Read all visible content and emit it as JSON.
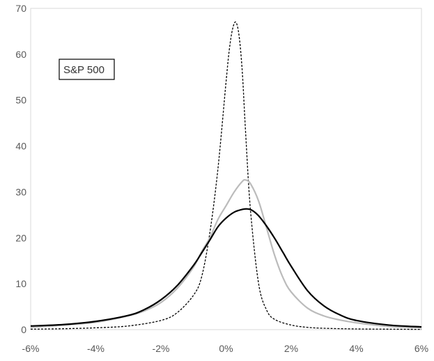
{
  "chart_data": {
    "type": "line",
    "title": "",
    "xlabel": "",
    "ylabel": "",
    "xlim": [
      -6,
      6
    ],
    "ylim": [
      0,
      70
    ],
    "x_ticks": [
      -6,
      -4,
      -2,
      0,
      2,
      4,
      6
    ],
    "x_tick_labels": [
      "-6%",
      "-4%",
      "-2%",
      "0%",
      "2%",
      "4%",
      "6%"
    ],
    "y_ticks": [
      0,
      10,
      20,
      30,
      40,
      50,
      60,
      70
    ],
    "y_tick_labels": [
      "0",
      "10",
      "20",
      "30",
      "40",
      "50",
      "60",
      "70"
    ],
    "grid": false,
    "annotation": "S&P 500",
    "series": [
      {
        "style": "dashed",
        "color": "#000000",
        "x": [
          -6,
          -5,
          -4,
          -3,
          -2,
          -1.5,
          -1,
          -0.75,
          -0.5,
          -0.25,
          0,
          0.1,
          0.2,
          0.3,
          0.4,
          0.5,
          0.6,
          0.75,
          1,
          1.25,
          1.5,
          2,
          2.5,
          3,
          4,
          5,
          6
        ],
        "y": [
          0.1,
          0.2,
          0.4,
          0.8,
          2,
          3.7,
          7.5,
          11.5,
          21,
          35,
          54,
          61,
          65.5,
          67,
          64,
          56,
          43,
          26,
          10,
          4.2,
          2.2,
          1,
          0.5,
          0.3,
          0.15,
          0.1,
          0.05
        ]
      },
      {
        "style": "solid",
        "color": "#bbbbbb",
        "x": [
          -6,
          -5,
          -4,
          -3,
          -2.5,
          -2,
          -1.5,
          -1,
          -0.75,
          -0.5,
          -0.25,
          0,
          0.25,
          0.5,
          0.6,
          0.75,
          1,
          1.25,
          1.5,
          1.75,
          2,
          2.5,
          3,
          3.5,
          4,
          5,
          6
        ],
        "y": [
          0.5,
          1,
          1.6,
          3,
          4.1,
          5.9,
          9,
          13.6,
          17,
          20,
          24,
          27,
          30,
          32.3,
          32.6,
          31.8,
          28,
          22,
          16,
          11.3,
          8.2,
          4.7,
          3,
          2.1,
          1.5,
          0.7,
          0.4
        ]
      },
      {
        "style": "solid",
        "color": "#000000",
        "x": [
          -6,
          -5,
          -4,
          -3,
          -2.5,
          -2,
          -1.5,
          -1,
          -0.75,
          -0.5,
          -0.25,
          0,
          0.25,
          0.5,
          0.65,
          0.8,
          1,
          1.25,
          1.5,
          1.75,
          2,
          2.5,
          3,
          3.5,
          4,
          5,
          6
        ],
        "y": [
          0.8,
          1.1,
          1.8,
          3.1,
          4.4,
          6.5,
          9.6,
          14,
          16.7,
          19.5,
          22.4,
          24.3,
          25.6,
          26.2,
          26.3,
          26,
          24.8,
          22.5,
          19.8,
          16.8,
          13.8,
          8.5,
          5.2,
          3.2,
          2,
          1,
          0.6
        ]
      }
    ]
  }
}
